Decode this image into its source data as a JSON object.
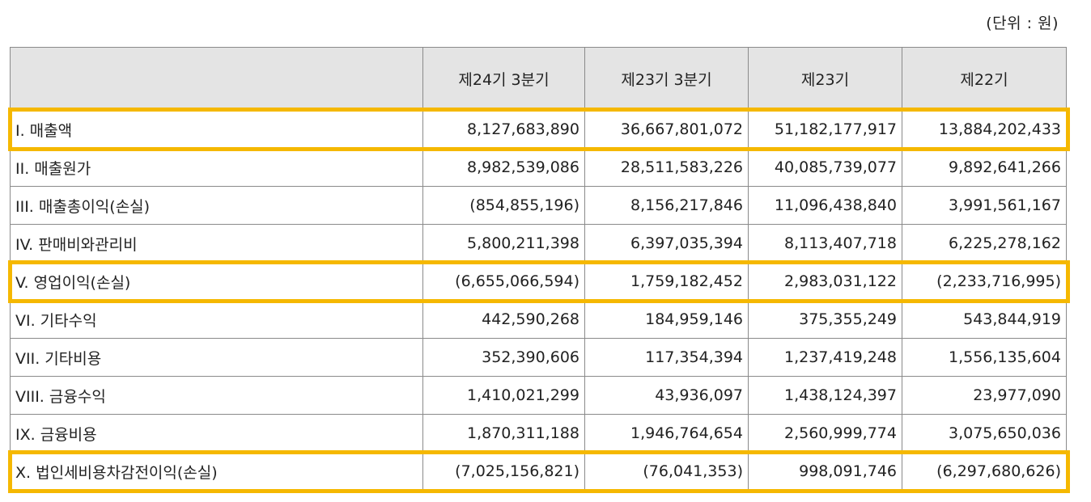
{
  "unit_label": "(단위 : 원)",
  "table": {
    "columns": [
      "",
      "제24기 3분기",
      "제23기 3분기",
      "제23기",
      "제22기"
    ],
    "rows": [
      {
        "label": "I. 매출액",
        "values": [
          "8,127,683,890",
          "36,667,801,072",
          "51,182,177,917",
          "13,884,202,433"
        ],
        "highlighted": true
      },
      {
        "label": "II. 매출원가",
        "values": [
          "8,982,539,086",
          "28,511,583,226",
          "40,085,739,077",
          "9,892,641,266"
        ],
        "highlighted": false
      },
      {
        "label": "III. 매출총이익(손실)",
        "values": [
          "(854,855,196)",
          "8,156,217,846",
          "11,096,438,840",
          "3,991,561,167"
        ],
        "highlighted": false
      },
      {
        "label": "IV. 판매비와관리비",
        "values": [
          "5,800,211,398",
          "6,397,035,394",
          "8,113,407,718",
          "6,225,278,162"
        ],
        "highlighted": false
      },
      {
        "label": "V. 영업이익(손실)",
        "values": [
          "(6,655,066,594)",
          "1,759,182,452",
          "2,983,031,122",
          "(2,233,716,995)"
        ],
        "highlighted": true
      },
      {
        "label": "VI. 기타수익",
        "values": [
          "442,590,268",
          "184,959,146",
          "375,355,249",
          "543,844,919"
        ],
        "highlighted": false
      },
      {
        "label": "VII. 기타비용",
        "values": [
          "352,390,606",
          "117,354,394",
          "1,237,419,248",
          "1,556,135,604"
        ],
        "highlighted": false
      },
      {
        "label": "VIII. 금융수익",
        "values": [
          "1,410,021,299",
          "43,936,097",
          "1,438,124,397",
          "23,977,090"
        ],
        "highlighted": false
      },
      {
        "label": "IX. 금융비용",
        "values": [
          "1,870,311,188",
          "1,946,764,654",
          "2,560,999,774",
          "3,075,650,036"
        ],
        "highlighted": false
      },
      {
        "label": "X. 법인세비용차감전이익(손실)",
        "values": [
          "(7,025,156,821)",
          "(76,041,353)",
          "998,091,746",
          "(6,297,680,626)"
        ],
        "highlighted": true
      }
    ]
  },
  "highlight_color": "#f5b800"
}
